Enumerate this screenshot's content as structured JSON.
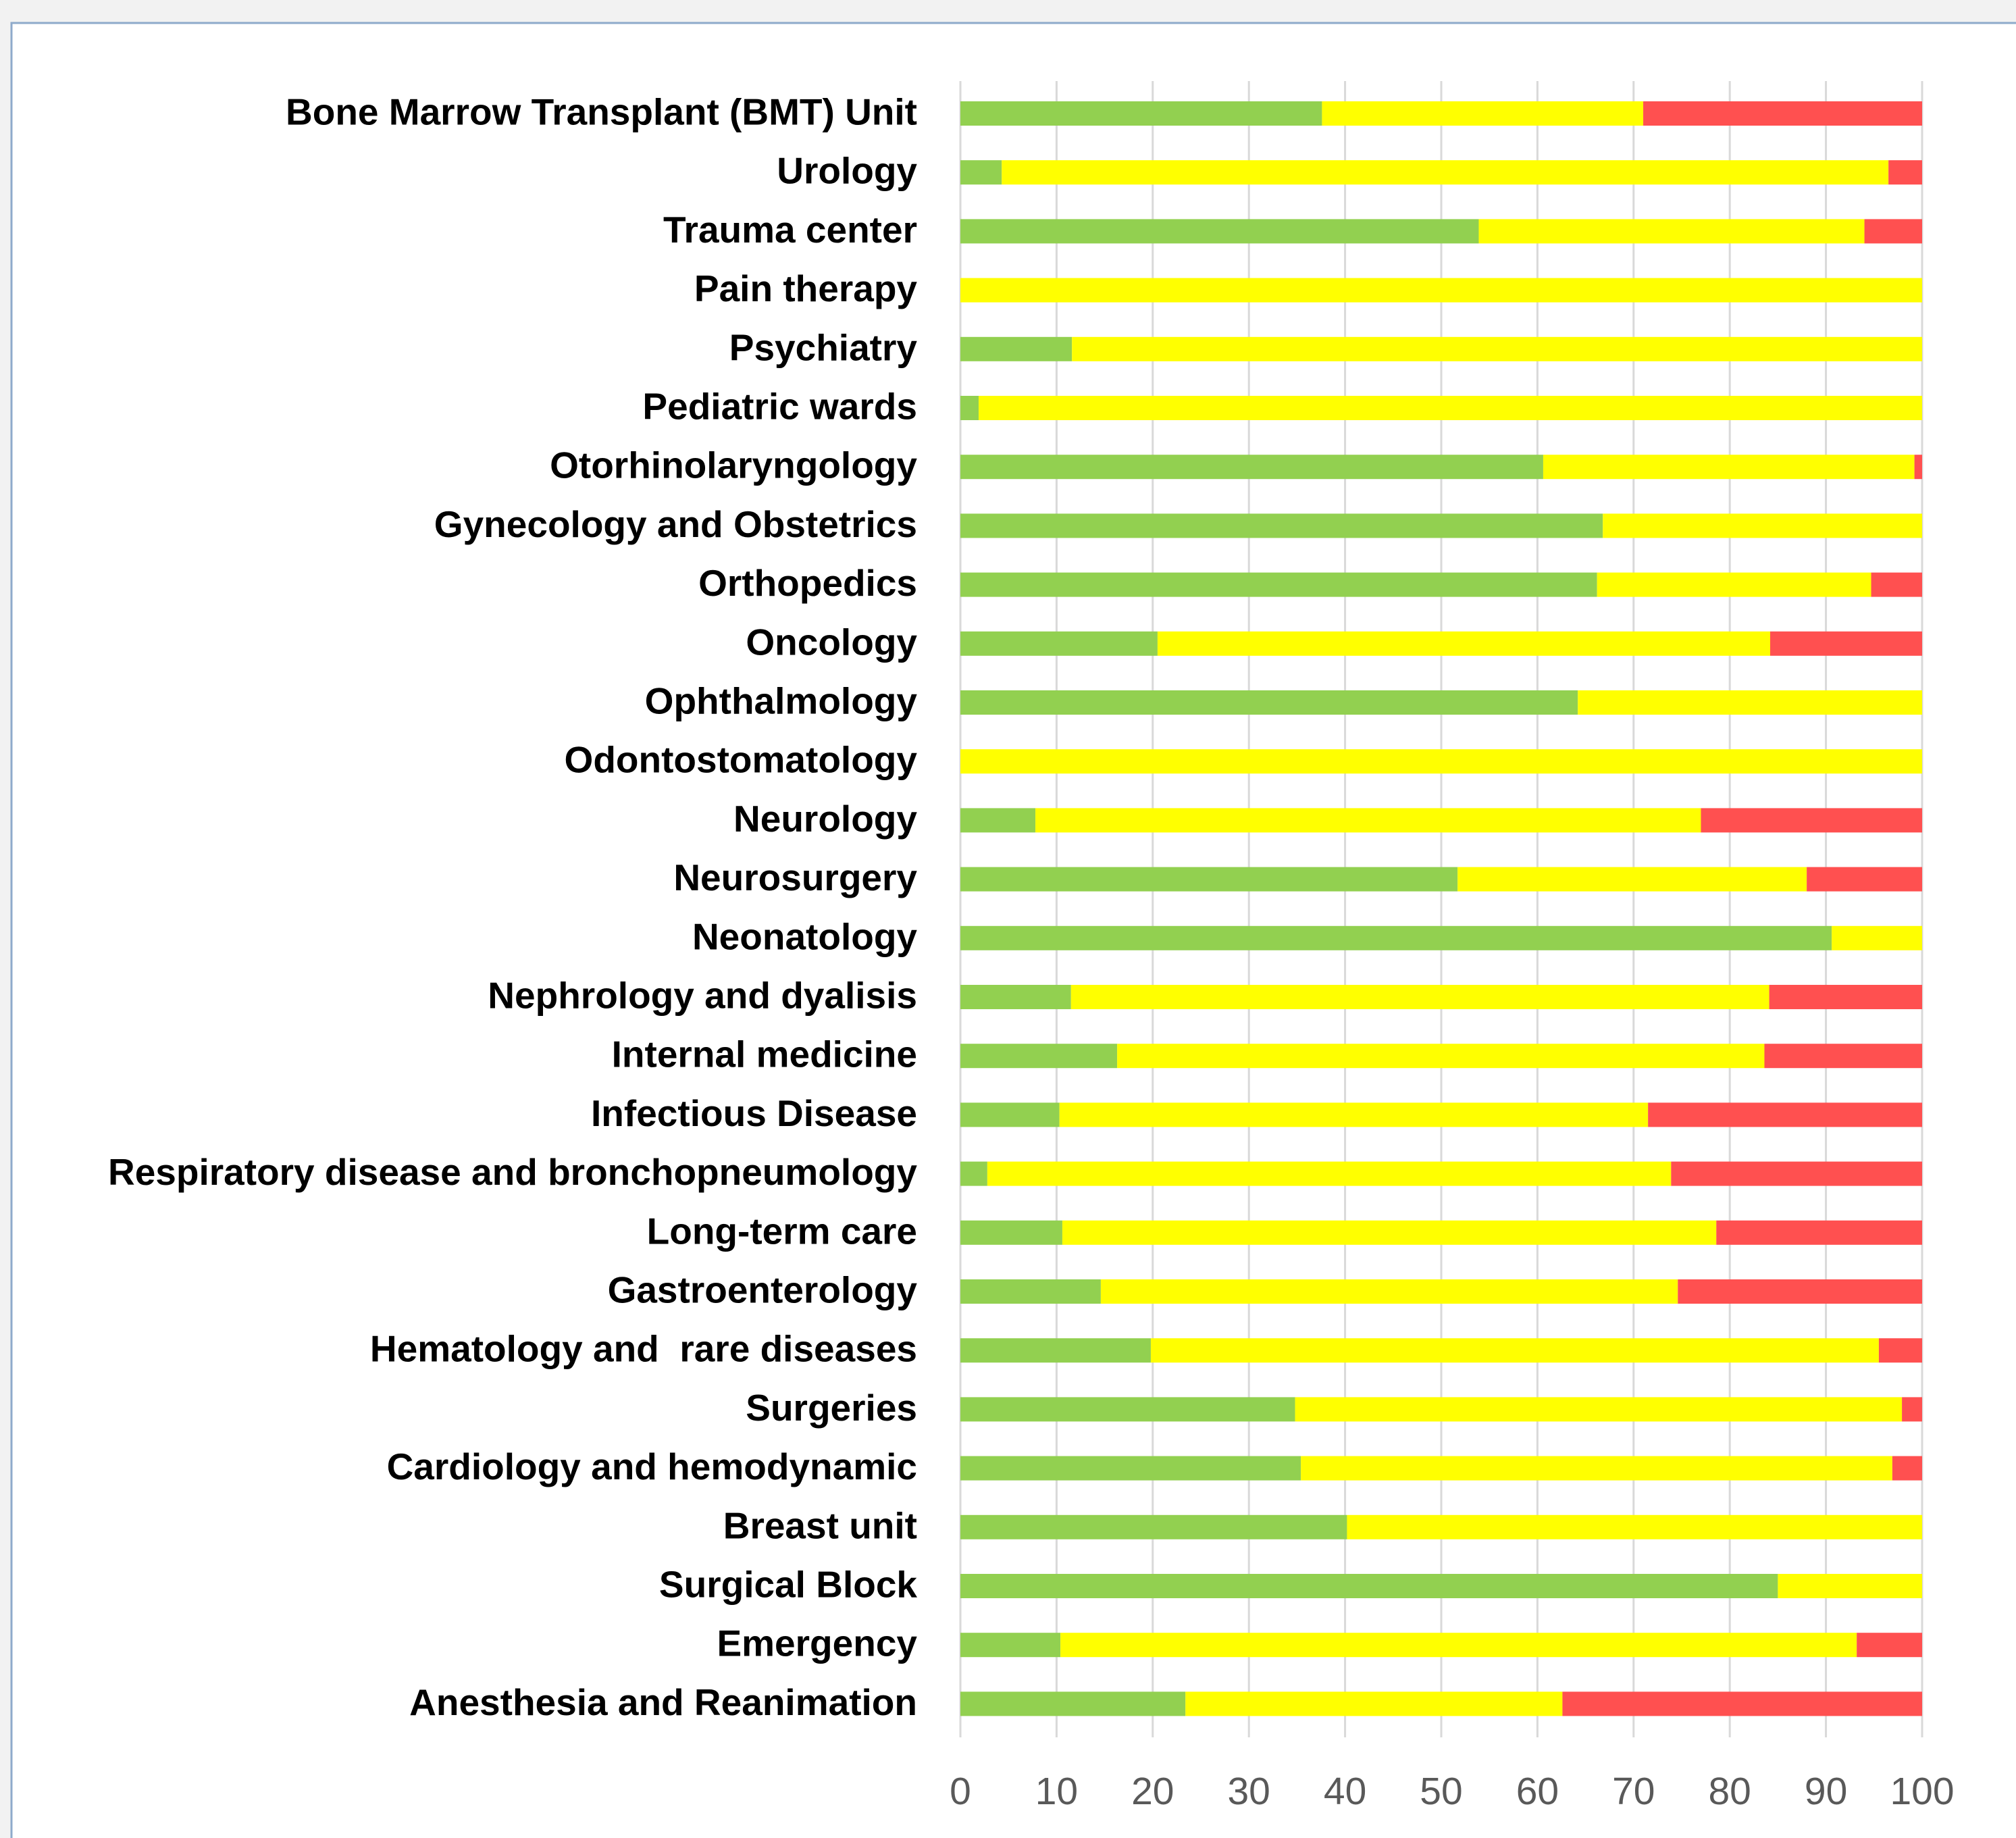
{
  "chart_data": {
    "type": "stacked_bar_horizontal",
    "categories": [
      "Bone Marrow Transplant (BMT) Unit",
      "Urology",
      "Trauma center",
      "Pain therapy",
      "Psychiatry",
      "Pediatric wards",
      "Otorhinolaryngology",
      "Gynecology and Obstetrics",
      "Orthopedics",
      "Oncology",
      "Ophthalmology",
      "Odontostomatology",
      "Neurology",
      "Neurosurgery",
      "Neonatology",
      "Nephrology and dyalisis",
      "Internal medicine",
      "Infectious Disease",
      "Respiratory disease and bronchopneumology",
      "Long-term care",
      "Gastroenterology",
      "Hematology and  rare diseases",
      "Surgeries",
      "Cardiology and hemodynamic",
      "Breast unit",
      "Surgical Block",
      "Emergency",
      "Anesthesia and Reanimation"
    ],
    "series": [
      {
        "color": "#92d050",
        "values": [
          37.6,
          4.3,
          53.9,
          0,
          11.6,
          1.9,
          60.6,
          66.8,
          66.2,
          20.5,
          64.2,
          0,
          7.8,
          51.7,
          90.6,
          11.5,
          16.3,
          10.3,
          2.8,
          10.6,
          14.6,
          19.8,
          34.8,
          35.4,
          40.2,
          85.0,
          10.4,
          23.4
        ]
      },
      {
        "color": "#ffff00",
        "values": [
          33.4,
          92.2,
          40.1,
          100,
          88.4,
          98.1,
          38.6,
          33.2,
          28.5,
          63.7,
          35.8,
          100,
          69.2,
          36.3,
          9.4,
          72.6,
          67.3,
          61.2,
          71.1,
          68.0,
          60.0,
          75.7,
          63.1,
          61.5,
          59.8,
          15.0,
          82.8,
          39.2
        ]
      },
      {
        "color": "#ff5050",
        "values": [
          29.0,
          3.5,
          6.0,
          0,
          0,
          0,
          0.8,
          0,
          5.3,
          15.8,
          0,
          0,
          23.0,
          12.0,
          0,
          15.9,
          16.4,
          28.5,
          26.1,
          21.4,
          25.4,
          4.5,
          2.1,
          3.1,
          0,
          0,
          6.8,
          37.4
        ]
      }
    ],
    "xlim": [
      0,
      100
    ],
    "xticks": [
      0,
      10,
      20,
      30,
      40,
      50,
      60,
      70,
      80,
      90,
      100
    ],
    "grid": true
  }
}
